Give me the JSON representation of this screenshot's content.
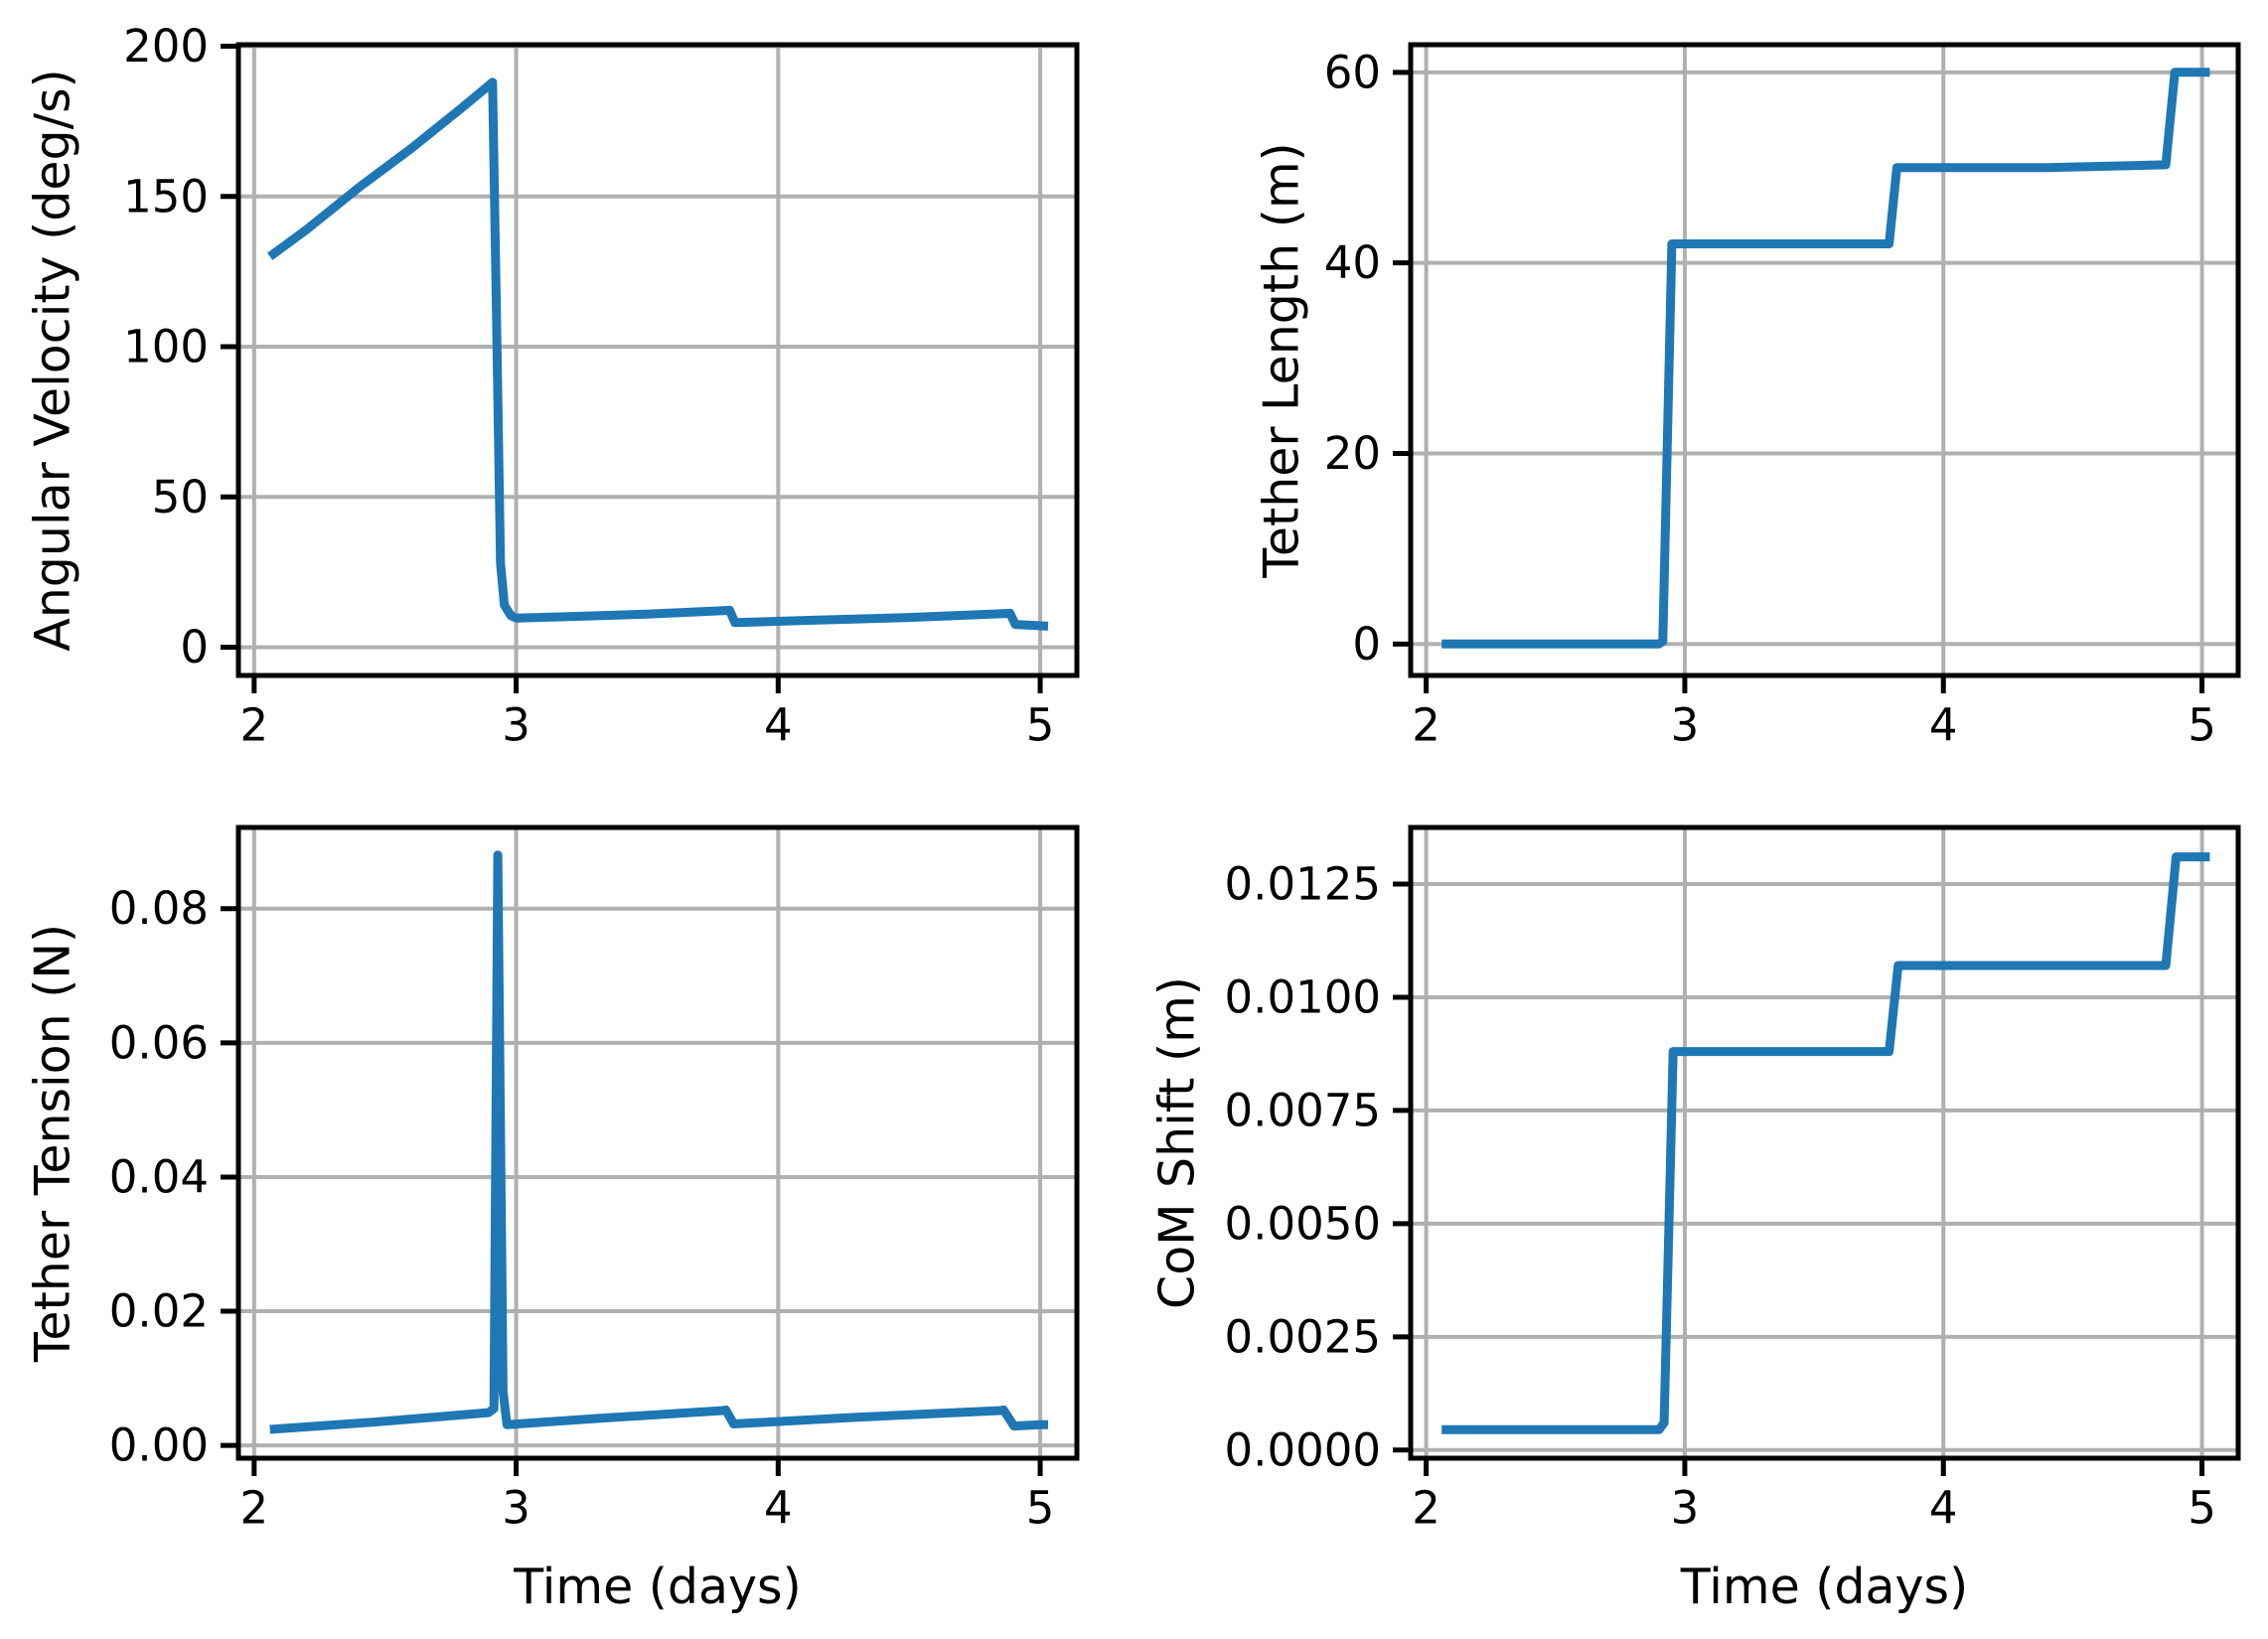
{
  "figure": {
    "background": "#ffffff",
    "grid_color": "#b0b0b0",
    "spine_color": "#000000",
    "tick_label_color": "#000000"
  },
  "chart_data": [
    {
      "id": "angular-velocity",
      "type": "line",
      "title": "",
      "xlabel": "",
      "ylabel": "Angular Velocity (deg/s)",
      "legend": "none",
      "grid": true,
      "line_color": "#1f77b4",
      "xlim": [
        1.94,
        5.14
      ],
      "ylim": [
        -9.4,
        200.5
      ],
      "x_ticks": [
        2,
        3,
        4,
        5
      ],
      "x_tick_labels": [
        "2",
        "3",
        "4",
        "5"
      ],
      "y_ticks": [
        0,
        50,
        100,
        150,
        200
      ],
      "y_tick_labels": [
        "0",
        "50",
        "100",
        "150",
        "200"
      ],
      "points": [
        [
          2.06,
          130
        ],
        [
          2.2,
          139
        ],
        [
          2.4,
          153
        ],
        [
          2.6,
          166
        ],
        [
          2.8,
          180
        ],
        [
          2.91,
          188
        ],
        [
          2.925,
          110
        ],
        [
          2.94,
          28
        ],
        [
          2.955,
          14
        ],
        [
          2.98,
          10.5
        ],
        [
          3.0,
          9.7
        ],
        [
          3.2,
          10.2
        ],
        [
          3.5,
          11.0
        ],
        [
          3.79,
          12.2
        ],
        [
          3.815,
          12.3
        ],
        [
          3.835,
          8.2
        ],
        [
          4.1,
          8.9
        ],
        [
          4.5,
          9.9
        ],
        [
          4.86,
          11.2
        ],
        [
          4.885,
          11.3
        ],
        [
          4.905,
          7.6
        ],
        [
          4.95,
          7.4
        ],
        [
          5.03,
          7.0
        ]
      ]
    },
    {
      "id": "tether-length",
      "type": "line",
      "title": "",
      "xlabel": "",
      "ylabel": "Tether Length (m)",
      "legend": "none",
      "grid": true,
      "line_color": "#1f77b4",
      "xlim": [
        1.94,
        5.14
      ],
      "ylim": [
        -3.3,
        62.9
      ],
      "x_ticks": [
        2,
        3,
        4,
        5
      ],
      "x_tick_labels": [
        "2",
        "3",
        "4",
        "5"
      ],
      "y_ticks": [
        0,
        20,
        40,
        60
      ],
      "y_tick_labels": [
        "0",
        "20",
        "40",
        "60"
      ],
      "points": [
        [
          2.06,
          0
        ],
        [
          2.9,
          0
        ],
        [
          2.915,
          0.3
        ],
        [
          2.95,
          42
        ],
        [
          3.2,
          42
        ],
        [
          3.79,
          42
        ],
        [
          3.82,
          50
        ],
        [
          4.4,
          50
        ],
        [
          4.86,
          50.3
        ],
        [
          4.895,
          60
        ],
        [
          5.03,
          60
        ]
      ]
    },
    {
      "id": "tether-tension",
      "type": "line",
      "title": "",
      "xlabel": "Time (days)",
      "ylabel": "Tether Tension (N)",
      "legend": "none",
      "grid": true,
      "line_color": "#1f77b4",
      "xlim": [
        1.94,
        5.14
      ],
      "ylim": [
        -0.0019,
        0.0921
      ],
      "x_ticks": [
        2,
        3,
        4,
        5
      ],
      "x_tick_labels": [
        "2",
        "3",
        "4",
        "5"
      ],
      "y_ticks": [
        0.0,
        0.02,
        0.04,
        0.06,
        0.08
      ],
      "y_tick_labels": [
        "0.00",
        "0.02",
        "0.04",
        "0.06",
        "0.08"
      ],
      "points": [
        [
          2.06,
          0.0024
        ],
        [
          2.5,
          0.0036
        ],
        [
          2.895,
          0.0049
        ],
        [
          2.915,
          0.0055
        ],
        [
          2.93,
          0.088
        ],
        [
          2.95,
          0.008
        ],
        [
          2.965,
          0.0031
        ],
        [
          3.3,
          0.004
        ],
        [
          3.79,
          0.0052
        ],
        [
          3.8,
          0.0053
        ],
        [
          3.83,
          0.0032
        ],
        [
          4.3,
          0.0042
        ],
        [
          4.85,
          0.0052
        ],
        [
          4.86,
          0.0053
        ],
        [
          4.9,
          0.0029
        ],
        [
          5.0,
          0.0031
        ],
        [
          5.03,
          0.0031
        ]
      ]
    },
    {
      "id": "com-shift",
      "type": "line",
      "title": "",
      "xlabel": "Time (days)",
      "ylabel": "CoM Shift (m)",
      "legend": "none",
      "grid": true,
      "line_color": "#1f77b4",
      "xlim": [
        1.94,
        5.14
      ],
      "ylim": [
        -0.00018,
        0.01375
      ],
      "x_ticks": [
        2,
        3,
        4,
        5
      ],
      "x_tick_labels": [
        "2",
        "3",
        "4",
        "5"
      ],
      "y_ticks": [
        0.0,
        0.0025,
        0.005,
        0.0075,
        0.01,
        0.0125
      ],
      "y_tick_labels": [
        "0.0000",
        "0.0025",
        "0.0050",
        "0.0075",
        "0.0100",
        "0.0125"
      ],
      "points": [
        [
          2.06,
          0.00045
        ],
        [
          2.9,
          0.00045
        ],
        [
          2.92,
          0.0006
        ],
        [
          2.955,
          0.0088
        ],
        [
          3.5,
          0.0088
        ],
        [
          3.79,
          0.0088
        ],
        [
          3.825,
          0.0107
        ],
        [
          4.4,
          0.0107
        ],
        [
          4.86,
          0.0107
        ],
        [
          4.9,
          0.0131
        ],
        [
          5.03,
          0.0131
        ]
      ]
    }
  ]
}
